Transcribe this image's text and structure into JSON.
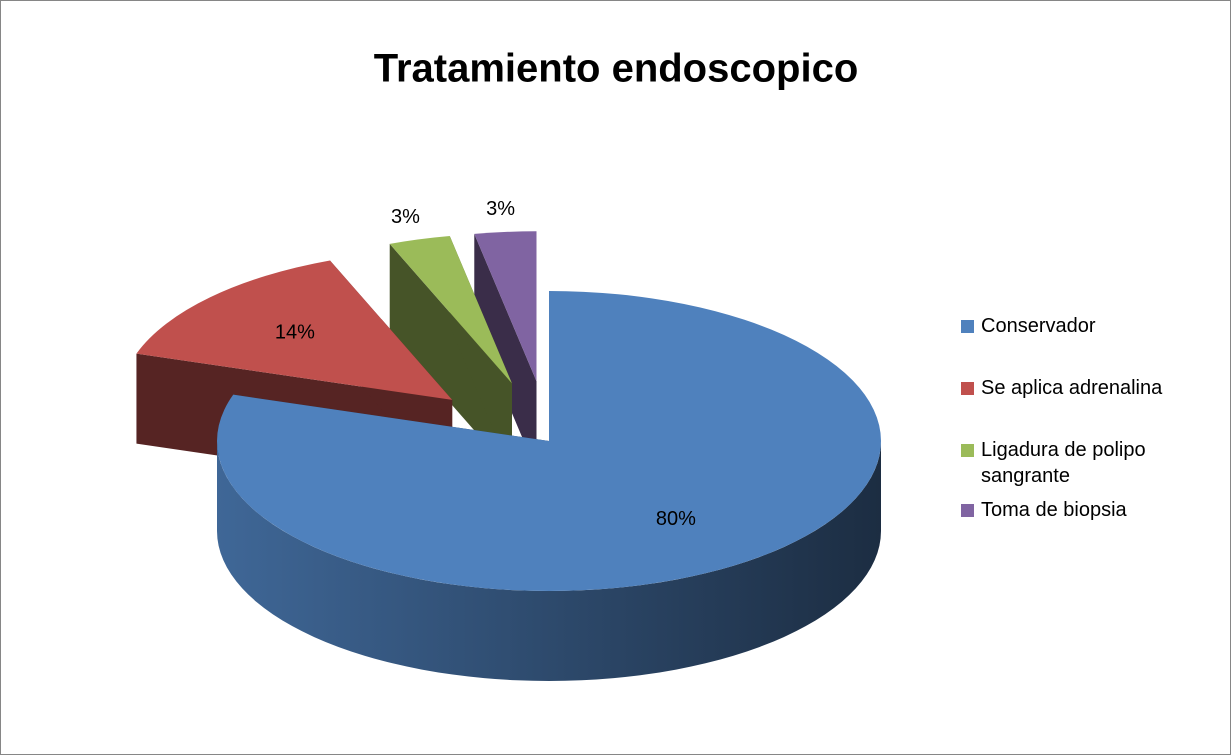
{
  "chart_data": {
    "type": "pie",
    "title": "Tratamiento endoscopico",
    "categories": [
      "Conservador",
      "Se aplica adrenalina",
      "Ligadura de polipo sangrante",
      "Toma de biopsia"
    ],
    "values": [
      80,
      14,
      3,
      3
    ],
    "value_labels": [
      "80%",
      "14%",
      "3%",
      "3%"
    ],
    "colors": [
      "#4f81bd",
      "#c0504d",
      "#9bbb59",
      "#8064a2"
    ],
    "legend": "right"
  }
}
